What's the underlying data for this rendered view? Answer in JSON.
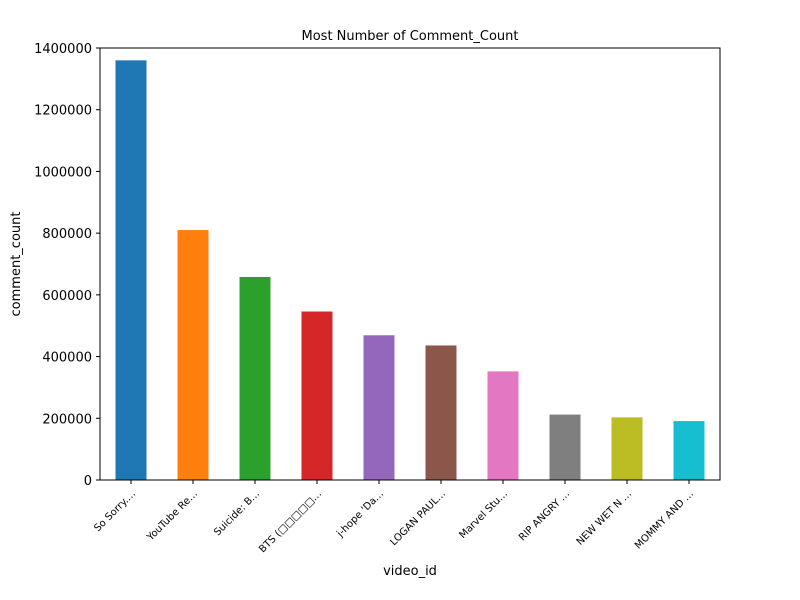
{
  "chart_data": {
    "type": "bar",
    "title": "Most Number of Comment_Count",
    "xlabel": "video_id",
    "ylabel": "comment_count",
    "categories": [
      "So Sorry.…",
      "YouTube Re…",
      "Suicide: B…",
      "BTS (□□□□□…",
      "j-hope 'Da…",
      "LOGAN PAUL…",
      "Marvel Stu…",
      "RIP ANGRY …",
      "NEW WET N …",
      "MOMMY AND …"
    ],
    "values": [
      1360000,
      810000,
      658000,
      546000,
      469000,
      436000,
      352000,
      212000,
      203000,
      191000
    ],
    "ylim": [
      0,
      1400000
    ],
    "yticks": [
      0,
      200000,
      400000,
      600000,
      800000,
      1000000,
      1200000,
      1400000
    ],
    "colors": [
      "#1f77b4",
      "#ff7f0e",
      "#2ca02c",
      "#d62728",
      "#9467bd",
      "#8c564b",
      "#e377c2",
      "#7f7f7f",
      "#bcbd22",
      "#17becf"
    ],
    "grid": false,
    "legend": "none"
  }
}
